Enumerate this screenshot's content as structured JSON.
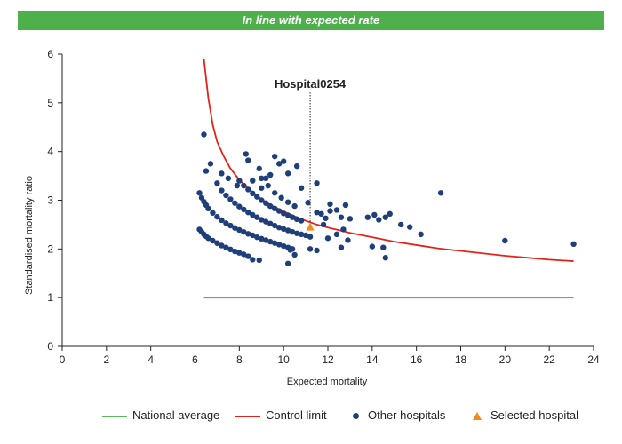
{
  "banner": {
    "text": "In line with expected rate",
    "color": "#4db04a"
  },
  "colors": {
    "national": "#5cb85c",
    "control": "#e3231b",
    "others": "#1f3f7a",
    "selected": "#f08c1e"
  },
  "chart_data": {
    "type": "scatter",
    "xlabel": "Expected mortality",
    "ylabel": "Standardised mortality ratio",
    "xlim": [
      0,
      24
    ],
    "ylim": [
      0,
      6
    ],
    "xticks": [
      0,
      2,
      4,
      6,
      8,
      10,
      12,
      14,
      16,
      18,
      20,
      22,
      24
    ],
    "yticks": [
      0,
      1,
      2,
      3,
      4,
      5,
      6
    ],
    "grid": false,
    "legend_position": "bottom",
    "annotation": {
      "label": "Hospital0254",
      "x": 11.2
    },
    "national_average": {
      "name": "National average",
      "y": 1,
      "x_range": [
        6.4,
        23.1
      ]
    },
    "control_limit": {
      "name": "Control limit",
      "points": [
        [
          6.4,
          5.9
        ],
        [
          6.6,
          5.1
        ],
        [
          6.8,
          4.55
        ],
        [
          7.0,
          4.2
        ],
        [
          7.3,
          3.9
        ],
        [
          7.6,
          3.65
        ],
        [
          8.0,
          3.42
        ],
        [
          8.5,
          3.2
        ],
        [
          9.0,
          3.02
        ],
        [
          9.5,
          2.88
        ],
        [
          10.0,
          2.77
        ],
        [
          10.5,
          2.67
        ],
        [
          11.0,
          2.58
        ],
        [
          11.5,
          2.5
        ],
        [
          12.0,
          2.44
        ],
        [
          13.0,
          2.33
        ],
        [
          14.0,
          2.24
        ],
        [
          15.0,
          2.15
        ],
        [
          16.0,
          2.08
        ],
        [
          17.0,
          2.01
        ],
        [
          18.0,
          1.96
        ],
        [
          19.0,
          1.91
        ],
        [
          20.0,
          1.86
        ],
        [
          21.0,
          1.82
        ],
        [
          22.0,
          1.78
        ],
        [
          23.1,
          1.75
        ]
      ]
    },
    "series": [
      {
        "name": "Other hospitals",
        "points": [
          [
            6.2,
            2.4
          ],
          [
            6.3,
            2.35
          ],
          [
            6.4,
            2.3
          ],
          [
            6.5,
            2.26
          ],
          [
            6.6,
            2.22
          ],
          [
            6.8,
            2.17
          ],
          [
            7.0,
            2.12
          ],
          [
            7.2,
            2.07
          ],
          [
            7.4,
            2.03
          ],
          [
            7.6,
            1.99
          ],
          [
            7.8,
            1.95
          ],
          [
            8.0,
            1.92
          ],
          [
            8.2,
            1.89
          ],
          [
            8.4,
            1.85
          ],
          [
            8.6,
            1.78
          ],
          [
            8.9,
            1.77
          ],
          [
            6.2,
            3.15
          ],
          [
            6.3,
            3.05
          ],
          [
            6.4,
            2.97
          ],
          [
            6.5,
            2.9
          ],
          [
            6.6,
            2.83
          ],
          [
            6.8,
            2.74
          ],
          [
            7.0,
            2.66
          ],
          [
            7.2,
            2.59
          ],
          [
            7.4,
            2.53
          ],
          [
            7.6,
            2.48
          ],
          [
            7.8,
            2.43
          ],
          [
            8.0,
            2.39
          ],
          [
            8.2,
            2.35
          ],
          [
            8.4,
            2.31
          ],
          [
            8.6,
            2.28
          ],
          [
            8.8,
            2.24
          ],
          [
            9.0,
            2.21
          ],
          [
            9.2,
            2.18
          ],
          [
            9.4,
            2.15
          ],
          [
            9.6,
            2.12
          ],
          [
            9.8,
            2.09
          ],
          [
            10.0,
            2.06
          ],
          [
            10.2,
            2.03
          ],
          [
            10.4,
            2.0
          ],
          [
            7.0,
            3.35
          ],
          [
            7.2,
            3.2
          ],
          [
            7.4,
            3.1
          ],
          [
            7.6,
            3.02
          ],
          [
            7.8,
            2.94
          ],
          [
            8.0,
            2.87
          ],
          [
            8.2,
            2.81
          ],
          [
            8.4,
            2.75
          ],
          [
            8.6,
            2.7
          ],
          [
            8.8,
            2.65
          ],
          [
            9.0,
            2.6
          ],
          [
            9.2,
            2.56
          ],
          [
            9.4,
            2.52
          ],
          [
            9.6,
            2.48
          ],
          [
            9.8,
            2.44
          ],
          [
            10.0,
            2.41
          ],
          [
            10.2,
            2.38
          ],
          [
            10.4,
            2.35
          ],
          [
            10.6,
            2.32
          ],
          [
            10.8,
            2.3
          ],
          [
            11.0,
            2.28
          ],
          [
            11.2,
            2.25
          ],
          [
            8.0,
            3.4
          ],
          [
            8.2,
            3.3
          ],
          [
            8.4,
            3.22
          ],
          [
            8.6,
            3.14
          ],
          [
            8.8,
            3.07
          ],
          [
            9.0,
            3.0
          ],
          [
            9.2,
            2.94
          ],
          [
            9.4,
            2.88
          ],
          [
            9.6,
            2.83
          ],
          [
            9.8,
            2.78
          ],
          [
            10.0,
            2.73
          ],
          [
            10.2,
            2.69
          ],
          [
            10.4,
            2.65
          ],
          [
            10.6,
            2.61
          ],
          [
            10.8,
            2.58
          ],
          [
            9.0,
            3.45
          ],
          [
            9.3,
            3.3
          ],
          [
            9.6,
            3.15
          ],
          [
            9.9,
            3.05
          ],
          [
            10.2,
            2.96
          ],
          [
            10.5,
            2.88
          ],
          [
            6.4,
            4.35
          ],
          [
            6.5,
            3.6
          ],
          [
            6.7,
            3.75
          ],
          [
            7.2,
            3.55
          ],
          [
            7.5,
            3.45
          ],
          [
            7.9,
            3.3
          ],
          [
            8.3,
            3.95
          ],
          [
            8.4,
            3.82
          ],
          [
            8.6,
            3.4
          ],
          [
            8.9,
            3.65
          ],
          [
            9.0,
            3.25
          ],
          [
            9.2,
            3.45
          ],
          [
            9.4,
            3.52
          ],
          [
            9.6,
            3.9
          ],
          [
            9.8,
            3.75
          ],
          [
            10.0,
            3.8
          ],
          [
            10.2,
            3.55
          ],
          [
            10.6,
            3.7
          ],
          [
            10.8,
            3.25
          ],
          [
            11.1,
            2.95
          ],
          [
            11.5,
            3.35
          ],
          [
            11.5,
            2.75
          ],
          [
            11.7,
            2.72
          ],
          [
            11.9,
            2.63
          ],
          [
            12.1,
            2.92
          ],
          [
            12.4,
            2.8
          ],
          [
            12.6,
            2.65
          ],
          [
            12.8,
            2.9
          ],
          [
            13.0,
            2.62
          ],
          [
            12.1,
            2.78
          ],
          [
            11.8,
            2.5
          ],
          [
            12.0,
            2.22
          ],
          [
            12.4,
            2.3
          ],
          [
            12.7,
            2.4
          ],
          [
            12.9,
            2.18
          ],
          [
            12.6,
            2.03
          ],
          [
            11.2,
            2.0
          ],
          [
            11.5,
            1.97
          ],
          [
            10.3,
            1.98
          ],
          [
            10.5,
            1.88
          ],
          [
            10.2,
            1.7
          ],
          [
            13.8,
            2.65
          ],
          [
            14.1,
            2.7
          ],
          [
            14.3,
            2.6
          ],
          [
            14.6,
            2.65
          ],
          [
            14.8,
            2.72
          ],
          [
            14.0,
            2.05
          ],
          [
            14.5,
            2.03
          ],
          [
            14.6,
            1.82
          ],
          [
            15.3,
            2.5
          ],
          [
            15.7,
            2.45
          ],
          [
            16.2,
            2.3
          ],
          [
            17.1,
            3.15
          ],
          [
            20.0,
            2.17
          ],
          [
            23.1,
            2.1
          ]
        ]
      },
      {
        "name": "Selected hospital",
        "points": [
          [
            11.2,
            2.45
          ]
        ]
      }
    ]
  }
}
